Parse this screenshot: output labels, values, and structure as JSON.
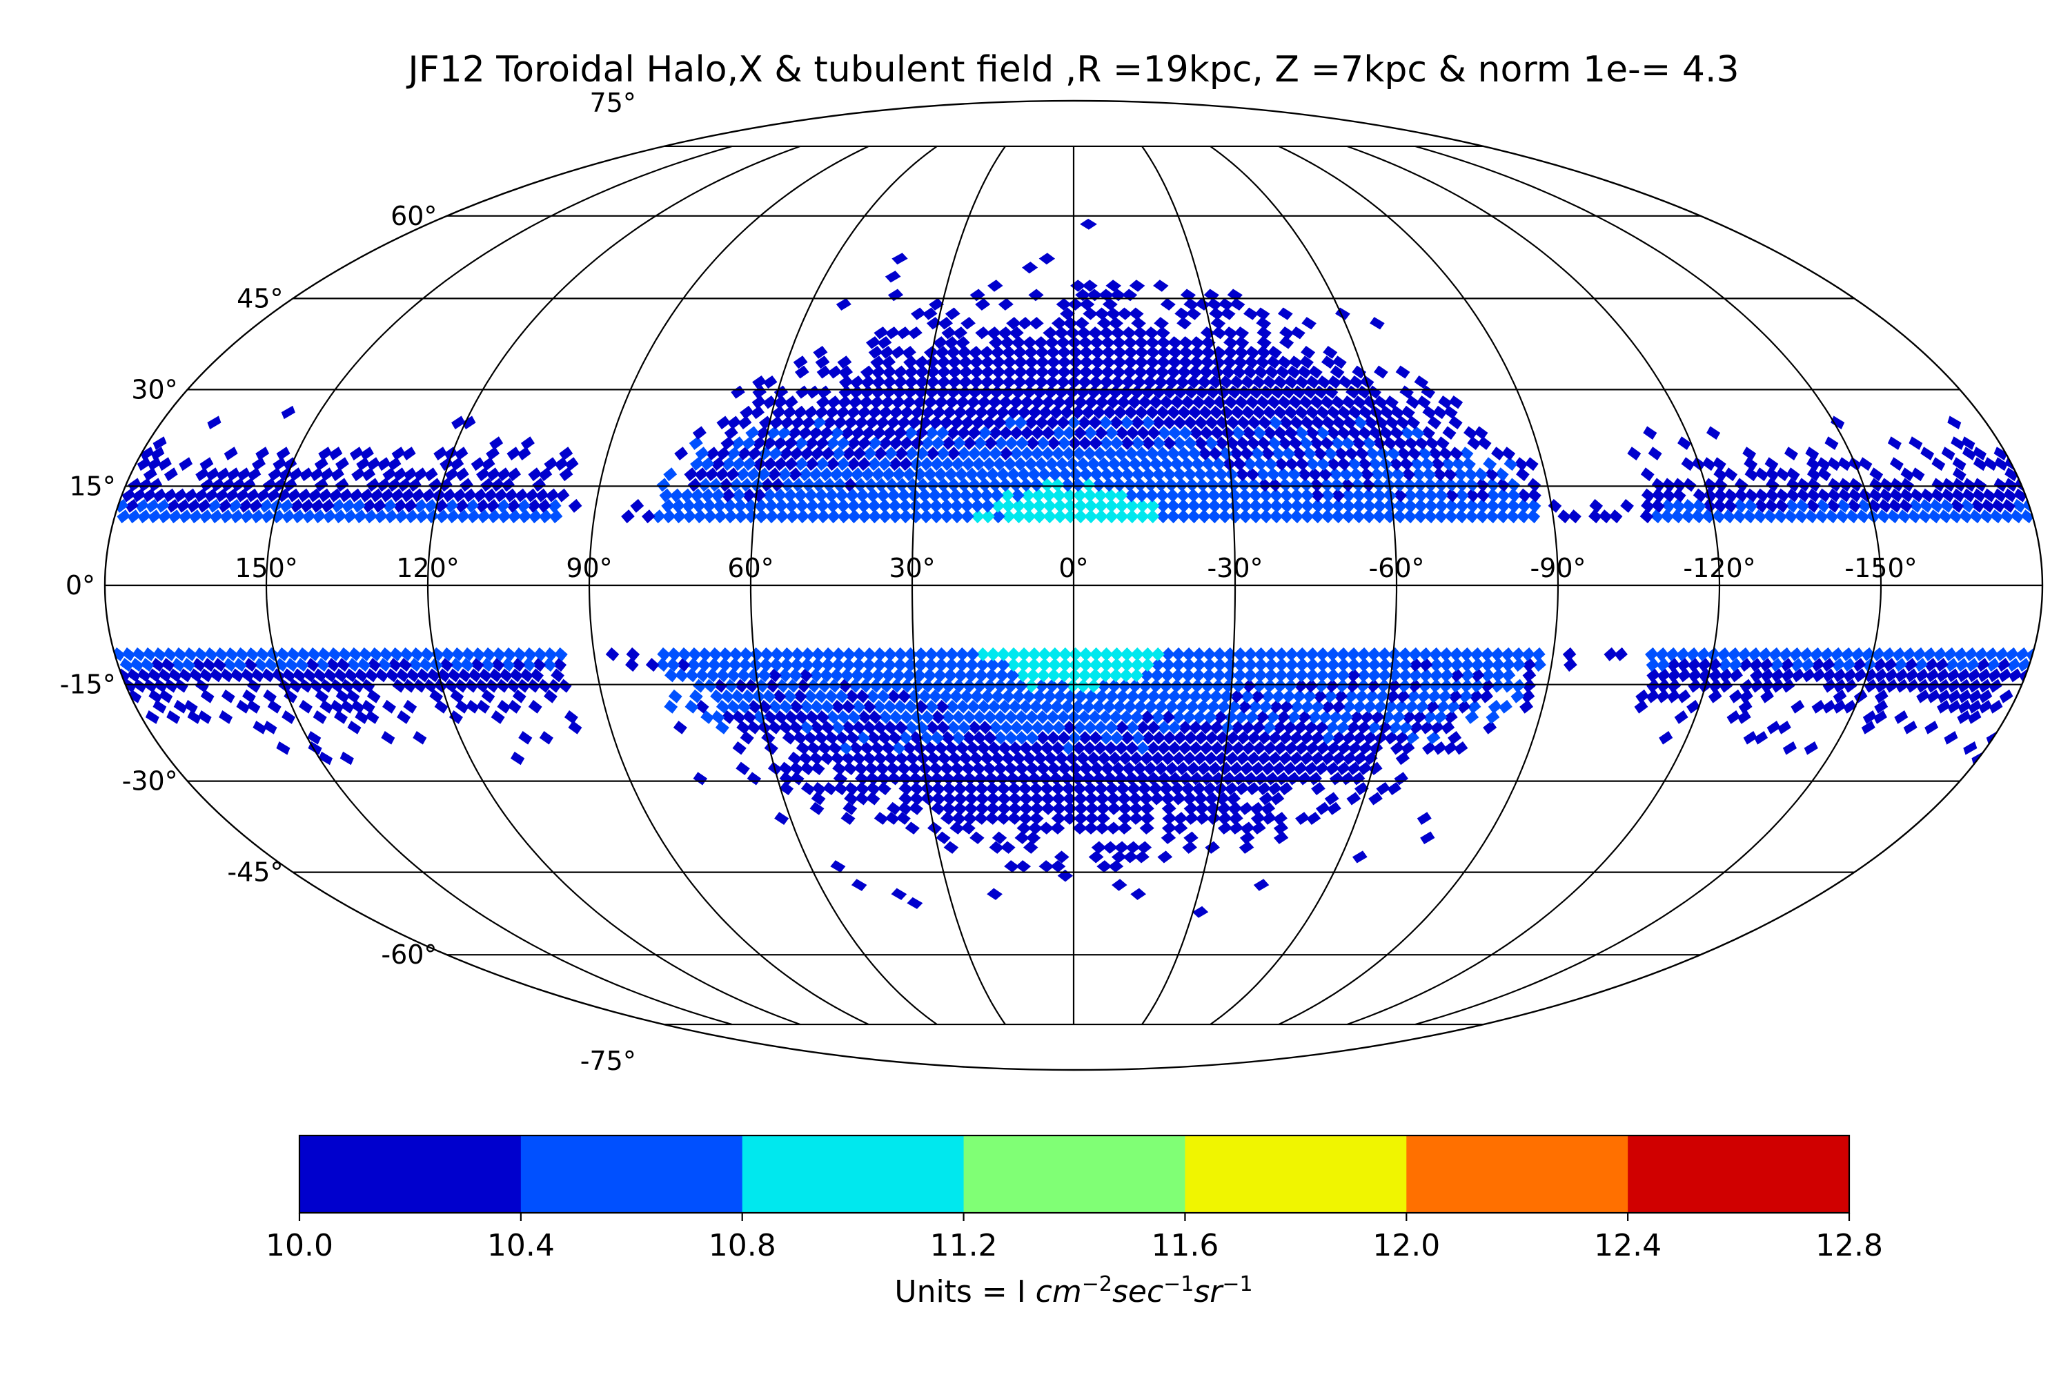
{
  "chart_data": {
    "type": "heatmap",
    "projection": "mollweide",
    "title": "JF12 Toroidal Halo,X & tubulent field ,R =19kpc, Z =7kpc & norm 1e-= 4.3",
    "lon_ticks": [
      "150°",
      "120°",
      "90°",
      "60°",
      "30°",
      "0°",
      "-30°",
      "-60°",
      "-90°",
      "-120°",
      "-150°"
    ],
    "lon_values": [
      150,
      120,
      90,
      60,
      30,
      0,
      -30,
      -60,
      -90,
      -120,
      -150
    ],
    "lat_ticks": [
      "75°",
      "60°",
      "45°",
      "30°",
      "15°",
      "0°",
      "-15°",
      "-30°",
      "-45°",
      "-60°",
      "-75°"
    ],
    "lat_values": [
      75,
      60,
      45,
      30,
      15,
      0,
      -15,
      -30,
      -45,
      -60,
      -75
    ],
    "grid": true,
    "colorbar": {
      "boundaries": [
        10.0,
        10.4,
        10.8,
        11.2,
        11.6,
        12.0,
        12.4,
        12.8
      ],
      "tick_labels": [
        "10.0",
        "10.4",
        "10.8",
        "11.2",
        "11.6",
        "12.0",
        "12.4",
        "12.8"
      ],
      "colors": [
        "#0000cd",
        "#0050ff",
        "#00e8ee",
        "#80ff75",
        "#f0f500",
        "#ff7000",
        "#d00000"
      ],
      "label_prefix": "Units = I ",
      "label_math": [
        "cm",
        "−2",
        "sec",
        "−1",
        "sr",
        "−1"
      ]
    },
    "data_note_colors": {
      "low": "#0000cd",
      "mid": "#0050ff",
      "high": "#00e8ee"
    },
    "regions": {
      "bulge_lon_range": [
        -85,
        78
      ],
      "band_abs_lat_min": 12,
      "band_abs_lat_max": 22,
      "gap_lon_ranges": [
        [
          78,
          96
        ],
        [
          -108,
          -88
        ]
      ],
      "peak_value": 10.95,
      "background_value": 10.0
    }
  }
}
